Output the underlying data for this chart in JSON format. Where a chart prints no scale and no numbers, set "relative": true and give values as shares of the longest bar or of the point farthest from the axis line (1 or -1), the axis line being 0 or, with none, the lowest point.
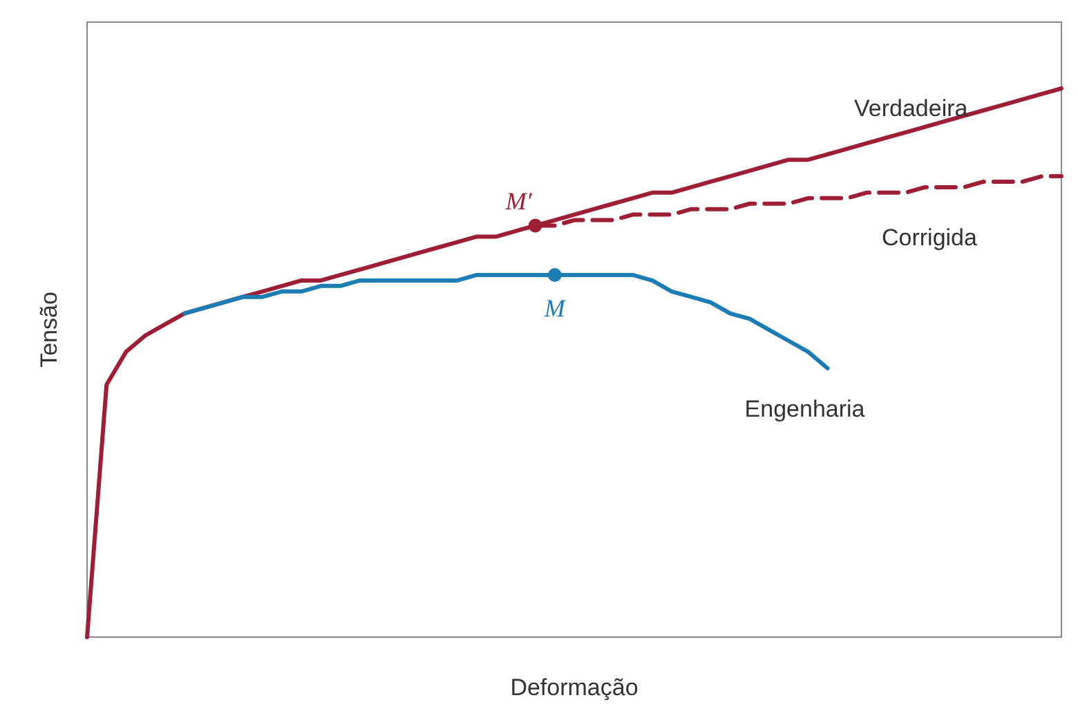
{
  "chart_data": {
    "type": "line",
    "relative": true,
    "xlabel": "Deformação",
    "ylabel": "Tensão",
    "grid": false,
    "legend": false,
    "marker": "none",
    "categories": [
      null,
      null,
      null,
      null,
      null,
      null,
      null,
      null,
      null,
      null,
      null,
      null,
      null,
      null,
      null,
      null,
      null,
      null,
      null,
      null,
      null,
      null,
      null,
      null,
      null,
      null,
      null,
      null,
      null,
      null,
      null,
      null,
      null,
      null,
      null,
      null,
      null,
      null,
      null,
      null,
      null,
      null,
      null,
      null,
      null,
      null,
      null,
      null,
      null,
      null,
      null
    ],
    "series": [
      {
        "name": "Verdadeira",
        "color": "#9e1f35",
        "line_style": "solid",
        "values": [
          0,
          0.46,
          0.52,
          0.55,
          0.57,
          0.59,
          0.6,
          0.61,
          0.62,
          0.63,
          0.64,
          0.65,
          0.65,
          0.66,
          0.67,
          0.68,
          0.69,
          0.7,
          0.71,
          0.72,
          0.73,
          0.73,
          0.74,
          0.75,
          0.76,
          0.77,
          0.78,
          0.79,
          0.8,
          0.81,
          0.81,
          0.82,
          0.83,
          0.84,
          0.85,
          0.86,
          0.87,
          0.87,
          0.88,
          0.89,
          0.9,
          0.91,
          0.92,
          0.93,
          0.94,
          0.95,
          0.96,
          0.97,
          0.98,
          0.99,
          1
        ]
      },
      {
        "name": "Corrigida",
        "color": "#9e1f35",
        "line_style": "dashed",
        "values": [
          null,
          null,
          null,
          null,
          null,
          null,
          null,
          null,
          null,
          null,
          null,
          null,
          null,
          null,
          null,
          null,
          null,
          null,
          null,
          null,
          null,
          null,
          null,
          0.75,
          0.75,
          0.76,
          0.76,
          0.76,
          0.77,
          0.77,
          0.77,
          0.78,
          0.78,
          0.78,
          0.79,
          0.79,
          0.79,
          0.8,
          0.8,
          0.8,
          0.81,
          0.81,
          0.81,
          0.82,
          0.82,
          0.82,
          0.83,
          0.83,
          0.83,
          0.84,
          0.84
        ]
      },
      {
        "name": "Engenharia",
        "color": "#1b7db3",
        "line_style": "solid",
        "values": [
          null,
          null,
          null,
          null,
          null,
          0.59,
          0.6,
          0.61,
          0.62,
          0.62,
          0.63,
          0.63,
          0.64,
          0.64,
          0.65,
          0.65,
          0.65,
          0.65,
          0.65,
          0.65,
          0.66,
          0.66,
          0.66,
          0.66,
          0.66,
          0.66,
          0.66,
          0.66,
          0.66,
          0.65,
          0.63,
          0.62,
          0.61,
          0.59,
          0.58,
          0.56,
          0.54,
          0.52,
          0.49,
          null,
          null,
          null,
          null,
          null,
          null,
          null,
          null,
          null,
          null,
          null,
          null
        ]
      }
    ],
    "annotations": [
      "M′",
      "M"
    ]
  }
}
